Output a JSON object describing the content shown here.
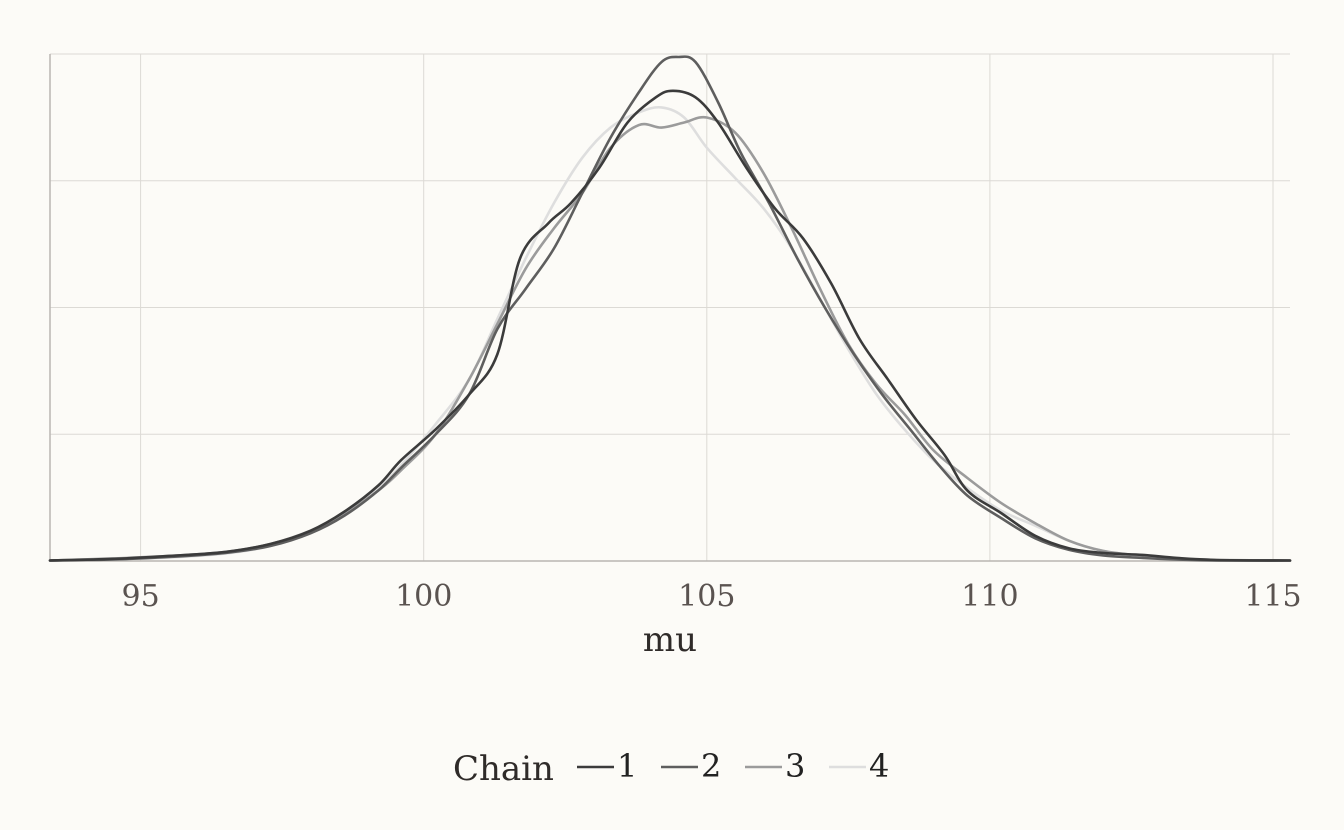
{
  "chart_data": {
    "type": "line",
    "title": "",
    "xlabel": "mu",
    "ylabel": "",
    "xlim": [
      93.4,
      115.3
    ],
    "ylim": [
      0,
      1.0
    ],
    "grid": true,
    "legend_placement": "bottom",
    "legend_title": "Chain",
    "x_ticks": [
      95,
      100,
      105,
      110,
      115
    ],
    "x_tick_labels": [
      "95",
      "100",
      "105",
      "110",
      "115"
    ],
    "y_gridlines": [
      0,
      0.25,
      0.5,
      0.75,
      1.0
    ],
    "series": [
      {
        "name": "1",
        "color": "#3b3b3b",
        "x": [
          93.4,
          94.5,
          95.5,
          96.5,
          97.3,
          98.0,
          98.6,
          99.2,
          99.6,
          100.2,
          100.8,
          101.3,
          101.7,
          102.2,
          102.6,
          103.1,
          103.6,
          104.1,
          104.4,
          104.8,
          105.2,
          105.7,
          106.2,
          106.7,
          107.2,
          107.7,
          108.2,
          108.7,
          109.2,
          109.6,
          110.2,
          110.8,
          111.4,
          112.0,
          112.7,
          113.3,
          114.0,
          115.3
        ],
        "y": [
          0.001,
          0.004,
          0.01,
          0.018,
          0.034,
          0.06,
          0.098,
          0.15,
          0.2,
          0.26,
          0.33,
          0.41,
          0.6,
          0.67,
          0.71,
          0.78,
          0.87,
          0.92,
          0.933,
          0.92,
          0.87,
          0.78,
          0.7,
          0.64,
          0.55,
          0.44,
          0.36,
          0.28,
          0.21,
          0.14,
          0.095,
          0.05,
          0.025,
          0.016,
          0.012,
          0.006,
          0.002,
          0.001
        ]
      },
      {
        "name": "2",
        "color": "#5e5e5e",
        "x": [
          93.4,
          94.5,
          95.5,
          96.5,
          97.3,
          98.0,
          98.6,
          99.2,
          99.6,
          100.2,
          100.8,
          101.3,
          101.8,
          102.3,
          102.8,
          103.3,
          103.8,
          104.2,
          104.5,
          104.8,
          105.2,
          105.6,
          106.1,
          106.6,
          107.1,
          107.6,
          108.1,
          108.6,
          109.1,
          109.6,
          110.2,
          110.8,
          111.4,
          112.0,
          112.7,
          113.3,
          114.0,
          115.3
        ],
        "y": [
          0.001,
          0.003,
          0.008,
          0.016,
          0.03,
          0.055,
          0.09,
          0.14,
          0.185,
          0.25,
          0.33,
          0.46,
          0.54,
          0.62,
          0.73,
          0.84,
          0.93,
          0.99,
          1.0,
          0.99,
          0.91,
          0.81,
          0.71,
          0.6,
          0.5,
          0.41,
          0.33,
          0.26,
          0.19,
          0.13,
          0.085,
          0.045,
          0.022,
          0.011,
          0.006,
          0.003,
          0.001,
          0.001
        ]
      },
      {
        "name": "3",
        "color": "#9b9b9b",
        "x": [
          93.4,
          94.5,
          95.5,
          96.5,
          97.3,
          98.0,
          98.6,
          99.2,
          99.6,
          100.2,
          100.8,
          101.3,
          101.8,
          102.3,
          102.8,
          103.3,
          103.8,
          104.2,
          104.6,
          105.0,
          105.5,
          106.0,
          106.5,
          107.0,
          107.5,
          108.0,
          108.5,
          109.0,
          109.6,
          110.2,
          110.8,
          111.4,
          112.0,
          112.7,
          113.3,
          114.0,
          115.3
        ],
        "y": [
          0.001,
          0.005,
          0.01,
          0.018,
          0.034,
          0.06,
          0.094,
          0.14,
          0.18,
          0.25,
          0.36,
          0.47,
          0.58,
          0.66,
          0.73,
          0.82,
          0.865,
          0.86,
          0.87,
          0.88,
          0.85,
          0.77,
          0.66,
          0.54,
          0.43,
          0.35,
          0.29,
          0.22,
          0.165,
          0.115,
          0.075,
          0.04,
          0.02,
          0.01,
          0.005,
          0.002,
          0.001
        ]
      },
      {
        "name": "4",
        "color": "#dedede",
        "x": [
          93.4,
          94.5,
          95.5,
          96.5,
          97.3,
          98.0,
          98.6,
          99.2,
          99.6,
          100.2,
          100.8,
          101.3,
          101.8,
          102.3,
          102.8,
          103.3,
          103.8,
          104.2,
          104.6,
          105.0,
          105.5,
          106.0,
          106.5,
          107.0,
          107.5,
          108.0,
          108.5,
          109.0,
          109.6,
          110.2,
          110.8,
          111.4,
          112.0,
          112.7,
          113.3,
          114.0,
          115.3
        ],
        "y": [
          0.001,
          0.003,
          0.007,
          0.015,
          0.03,
          0.058,
          0.095,
          0.145,
          0.19,
          0.27,
          0.36,
          0.48,
          0.6,
          0.71,
          0.8,
          0.86,
          0.89,
          0.9,
          0.88,
          0.82,
          0.76,
          0.7,
          0.62,
          0.52,
          0.42,
          0.33,
          0.26,
          0.2,
          0.145,
          0.1,
          0.07,
          0.04,
          0.02,
          0.01,
          0.005,
          0.002,
          0.001
        ]
      }
    ]
  }
}
